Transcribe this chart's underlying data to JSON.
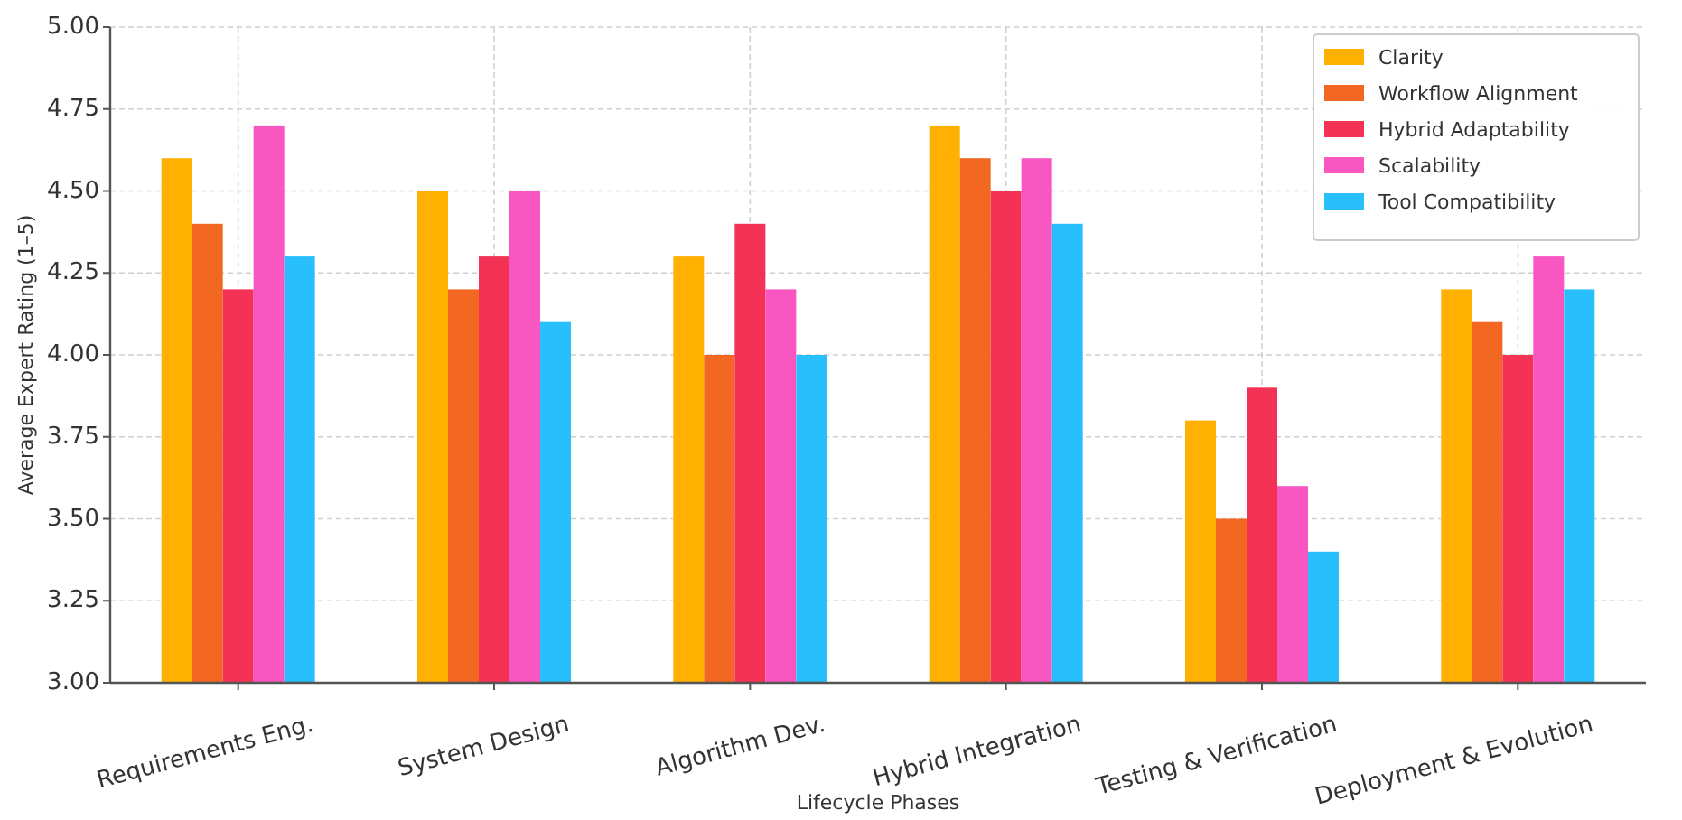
{
  "chart_data": {
    "type": "bar",
    "xlabel": "Lifecycle Phases",
    "ylabel": "Average Expert Rating (1–5)",
    "categories": [
      "Requirements Eng.",
      "System Design",
      "Algorithm Dev.",
      "Hybrid Integration",
      "Testing & Verification",
      "Deployment & Evolution"
    ],
    "series": [
      {
        "name": "Clarity",
        "color": "#ffb000",
        "values": [
          4.6,
          4.5,
          4.3,
          4.7,
          3.8,
          4.2
        ]
      },
      {
        "name": "Workflow Alignment",
        "color": "#f26722",
        "values": [
          4.4,
          4.2,
          4.0,
          4.6,
          3.5,
          4.1
        ]
      },
      {
        "name": "Hybrid Adaptability",
        "color": "#f43255",
        "values": [
          4.2,
          4.3,
          4.4,
          4.5,
          3.9,
          4.0
        ]
      },
      {
        "name": "Scalability",
        "color": "#f857c1",
        "values": [
          4.7,
          4.5,
          4.2,
          4.6,
          3.6,
          4.3
        ]
      },
      {
        "name": "Tool Compatibility",
        "color": "#29bffc",
        "values": [
          4.3,
          4.1,
          4.0,
          4.4,
          3.4,
          4.2
        ]
      }
    ],
    "ylim": [
      3,
      5
    ],
    "yticks": [
      {
        "value": 3,
        "label": "3.00"
      },
      {
        "value": 3.25,
        "label": "3.25"
      },
      {
        "value": 3.5,
        "label": "3.50"
      },
      {
        "value": 3.75,
        "label": "3.75"
      },
      {
        "value": 4,
        "label": "4.00"
      },
      {
        "value": 4.25,
        "label": "4.25"
      },
      {
        "value": 4.5,
        "label": "4.50"
      },
      {
        "value": 4.75,
        "label": "4.75"
      },
      {
        "value": 5,
        "label": "5.00"
      }
    ],
    "grid": true,
    "legend": "top right"
  }
}
